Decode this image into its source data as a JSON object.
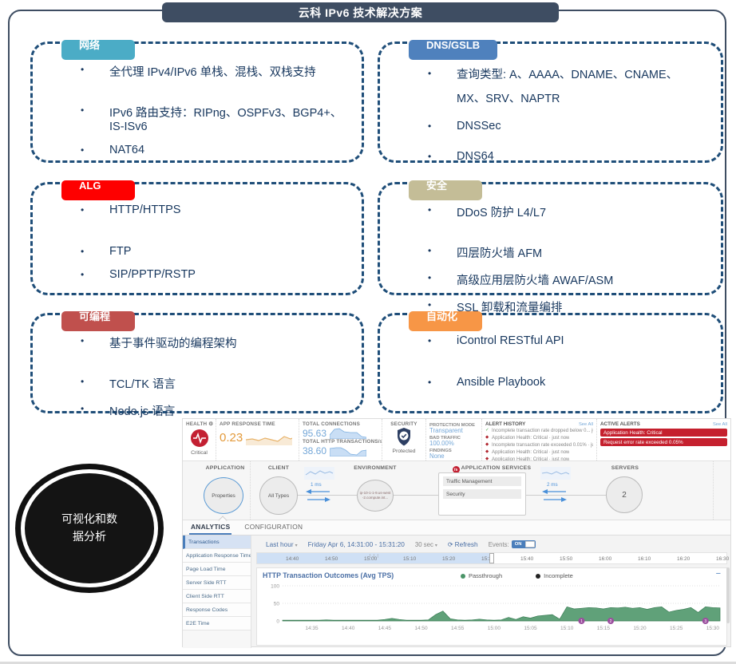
{
  "slide": {
    "title": "云科 IPv6 技术解决方案",
    "ellipse_lines": [
      "可视化和数",
      "据分析"
    ],
    "boxes": [
      {
        "id": "network",
        "label": "网络",
        "color": "#4bacc6",
        "items": [
          "全代理 IPv4/IPv6 单栈、混栈、双栈支持",
          "IPv6 路由支持：RIPng、OSPFv3、BGP4+、IS-ISv6",
          "NAT64"
        ]
      },
      {
        "id": "dns",
        "label": "DNS/GSLB",
        "color": "#4f81bd",
        "items": [
          "查询类型: A、AAAA、DNAME、CNAME、MX、SRV、NAPTR",
          "DNSSec",
          "DNS64"
        ]
      },
      {
        "id": "alg",
        "label": "ALG",
        "color": "#fe0000",
        "items": [
          "HTTP/HTTPS",
          "FTP",
          "SIP/PPTP/RSTP"
        ]
      },
      {
        "id": "security",
        "label": "安全",
        "color": "#c4bd97",
        "items": [
          "DDoS 防护 L4/L7",
          "四层防火墙 AFM",
          "高级应用层防火墙 AWAF/ASM",
          "SSL 卸载和流量编排"
        ]
      },
      {
        "id": "programmable",
        "label": "可编程",
        "color": "#c0504d",
        "items": [
          "基于事件驱动的编程架构",
          "TCL/TK 语言",
          "Node.js 语言"
        ]
      },
      {
        "id": "automation",
        "label": "自动化",
        "color": "#f79646",
        "items": [
          "iControl RESTful API",
          "Ansible Playbook"
        ]
      }
    ]
  },
  "dashboard": {
    "stats": {
      "health": {
        "label": "HEALTH",
        "status": "Critical"
      },
      "app_response": {
        "label": "APP RESPONSE TIME",
        "value": "0.23"
      },
      "connections": {
        "label": "TOTAL CONNECTIONS",
        "value": "95.63"
      },
      "transactions": {
        "label": "TOTAL HTTP TRANSACTIONS/s",
        "value": "38.60"
      },
      "security": {
        "label": "SECURITY",
        "status": "Protected"
      },
      "protection": [
        {
          "label": "PROTECTION MODE",
          "value": "Transparent"
        },
        {
          "label": "BAD TRAFFIC",
          "value": "100.00%"
        },
        {
          "label": "FINDINGS",
          "value": "None"
        }
      ],
      "alert_history": {
        "title": "ALERT HISTORY",
        "see_all": "See All",
        "items": [
          {
            "icon": "check",
            "text": "Incomplete transaction rate dropped below 0... just now"
          },
          {
            "icon": "diamond",
            "text": "Application Health: Critical · just now"
          },
          {
            "icon": "diamond",
            "text": "Incomplete transaction rate exceeded 0.01% · just now"
          },
          {
            "icon": "diamond",
            "text": "Application Health: Critical · just now"
          },
          {
            "icon": "diamond",
            "text": "Application Health: Critical · just now"
          }
        ]
      },
      "active_alerts": {
        "title": "ACTIVE ALERTS",
        "see_all": "See All",
        "items": [
          "Application Health: Critical",
          "Request error rate exceeded 0.05%"
        ]
      }
    },
    "topology": {
      "headers": [
        "APPLICATION",
        "CLIENT",
        "ENVIRONMENT",
        "APPLICATION SERVICES",
        "SERVERS"
      ],
      "logo_text": "f5",
      "app_circle": "Properties",
      "client_circle": "All Types",
      "env_circle": "ip-10-1-1-9.us-west-2.compute.int...",
      "latency_client": "1 ms",
      "latency_server": "2 ms",
      "services": [
        "Traffic Management",
        "Security"
      ],
      "servers_count": "2"
    },
    "tabs": [
      {
        "label": "ANALYTICS",
        "active": true
      },
      {
        "label": "CONFIGURATION",
        "active": false
      }
    ],
    "sidebar": {
      "selected_index": 0,
      "items": [
        "Transactions",
        "Application Response Time",
        "Page Load Time",
        "Server Side RTT",
        "Client Side RTT",
        "Response Codes",
        "E2E Time"
      ]
    },
    "time_controls": {
      "range_label": "Last hour",
      "date_label": "Friday Apr 6, 14:31:00 - 15:31:20",
      "interval_label": "30 sec",
      "refresh_label": "Refresh",
      "events_label": "Events:",
      "events_state": "ON"
    },
    "ruler": {
      "start": "14:31",
      "end": "16:31",
      "selected_end": "15:31",
      "ticks": [
        "14:40",
        "14:50",
        "15:00",
        "15:10",
        "15:20",
        "15:30",
        "15:40",
        "15:50",
        "16:00",
        "16:10",
        "16:20",
        "16:30"
      ]
    }
  },
  "chart_data": {
    "type": "area",
    "title": "HTTP Transaction Outcomes (Avg TPS)",
    "x_start": "14:31",
    "x_end": "15:31",
    "x_interval_minutes": 1,
    "x_tick_labels": [
      "14:35",
      "14:40",
      "14:45",
      "14:50",
      "14:55",
      "15:00",
      "15:05",
      "15:10",
      "15:15",
      "15:20",
      "15:25",
      "15:30"
    ],
    "ylim": [
      0,
      100
    ],
    "y_ticks": [
      0,
      50,
      100
    ],
    "grid": true,
    "legend_position": "top-center",
    "marker_color": "#9b4f9e",
    "series": [
      {
        "name": "Passthrough",
        "color": "#4a9467",
        "values": [
          2,
          2,
          2,
          2,
          2,
          2,
          3,
          2,
          2,
          2,
          2,
          2,
          2,
          2,
          4,
          7,
          4,
          2,
          2,
          2,
          3,
          18,
          28,
          6,
          3,
          2,
          3,
          5,
          3,
          2,
          3,
          10,
          4,
          12,
          8,
          14,
          16,
          18,
          5,
          40,
          34,
          36,
          38,
          37,
          34,
          38,
          37,
          39,
          36,
          38,
          33,
          38,
          40,
          25,
          30,
          33,
          38,
          24,
          40,
          38,
          37
        ]
      },
      {
        "name": "Incomplete",
        "color": "#222222",
        "values": [
          0,
          0,
          0,
          0,
          0,
          0,
          0,
          0,
          0,
          0,
          0,
          0,
          0,
          0,
          0,
          0,
          0,
          0,
          0,
          0,
          0,
          0,
          0,
          0,
          0,
          0,
          0,
          0,
          0,
          0,
          0,
          0,
          0,
          0,
          0,
          0,
          0,
          0,
          0,
          0,
          0,
          0,
          0,
          0,
          0,
          0,
          0,
          0,
          0,
          0,
          0,
          0,
          0,
          0,
          0,
          0,
          0,
          0,
          0,
          0,
          0
        ]
      }
    ],
    "event_markers": [
      {
        "x": "15:12",
        "label": "1"
      },
      {
        "x": "15:16",
        "label": "2"
      },
      {
        "x": "15:29",
        "label": "3"
      }
    ]
  }
}
